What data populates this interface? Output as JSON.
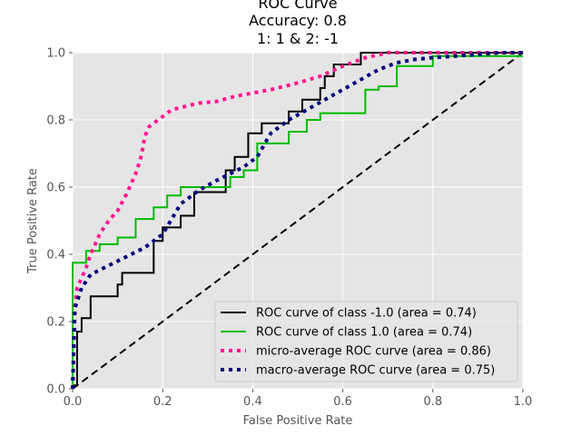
{
  "chart_data": {
    "type": "line",
    "title_lines": [
      "ROC Curve",
      "Accuracy: 0.8",
      "1: 1 & 2: -1"
    ],
    "xlabel": "False Positive Rate",
    "ylabel": "True Positive Rate",
    "xlim": [
      0.0,
      1.0
    ],
    "ylim": [
      0.0,
      1.0
    ],
    "xticks": [
      0.0,
      0.2,
      0.4,
      0.6,
      0.8,
      1.0
    ],
    "yticks": [
      0.0,
      0.2,
      0.4,
      0.6,
      0.8,
      1.0
    ],
    "tick_labels_x": [
      "0.0",
      "0.2",
      "0.4",
      "0.6",
      "0.8",
      "1.0"
    ],
    "tick_labels_y": [
      "0.0",
      "0.2",
      "0.4",
      "0.6",
      "0.8",
      "1.0"
    ],
    "grid": true,
    "background": "#e5e5e5",
    "legend_position": "lower right",
    "series": [
      {
        "name": "ROC curve of class -1.0 (area = 0.74)",
        "color": "#000000",
        "style": "solid",
        "x": [
          0.0,
          0.0,
          0.01,
          0.01,
          0.02,
          0.02,
          0.04,
          0.04,
          0.1,
          0.1,
          0.11,
          0.11,
          0.18,
          0.18,
          0.2,
          0.2,
          0.24,
          0.24,
          0.27,
          0.27,
          0.34,
          0.34,
          0.36,
          0.36,
          0.39,
          0.39,
          0.42,
          0.42,
          0.45,
          0.45,
          0.48,
          0.48,
          0.51,
          0.51,
          0.55,
          0.55,
          0.56,
          0.56,
          0.58,
          0.58,
          0.62,
          0.62,
          0.64,
          0.64,
          0.67,
          0.67,
          1.0
        ],
        "y": [
          0.0,
          0.01,
          0.01,
          0.17,
          0.17,
          0.21,
          0.21,
          0.275,
          0.275,
          0.31,
          0.31,
          0.345,
          0.345,
          0.44,
          0.44,
          0.48,
          0.48,
          0.515,
          0.515,
          0.585,
          0.585,
          0.65,
          0.65,
          0.69,
          0.69,
          0.76,
          0.76,
          0.79,
          0.79,
          0.79,
          0.79,
          0.825,
          0.825,
          0.86,
          0.86,
          0.895,
          0.895,
          0.93,
          0.93,
          0.965,
          0.965,
          0.965,
          0.965,
          1.0,
          1.0,
          1.0,
          1.0
        ]
      },
      {
        "name": "ROC curve of class 1.0 (area = 0.74)",
        "color": "#00bb00",
        "style": "solid",
        "x": [
          0.0,
          0.0,
          0.03,
          0.03,
          0.06,
          0.06,
          0.1,
          0.1,
          0.14,
          0.14,
          0.18,
          0.18,
          0.21,
          0.21,
          0.24,
          0.24,
          0.35,
          0.35,
          0.38,
          0.38,
          0.41,
          0.41,
          0.48,
          0.48,
          0.52,
          0.52,
          0.55,
          0.55,
          0.65,
          0.65,
          0.68,
          0.68,
          0.72,
          0.72,
          0.8,
          0.8,
          1.0
        ],
        "y": [
          0.0,
          0.375,
          0.375,
          0.41,
          0.41,
          0.43,
          0.43,
          0.45,
          0.45,
          0.505,
          0.505,
          0.54,
          0.54,
          0.575,
          0.575,
          0.6,
          0.6,
          0.63,
          0.63,
          0.65,
          0.65,
          0.73,
          0.73,
          0.765,
          0.765,
          0.8,
          0.8,
          0.82,
          0.82,
          0.89,
          0.89,
          0.9,
          0.9,
          0.96,
          0.96,
          0.99,
          0.99
        ]
      },
      {
        "name": "micro-average ROC curve (area = 0.86)",
        "color": "#ff1493",
        "style": "dotted",
        "x": [
          0.0,
          0.005,
          0.01,
          0.02,
          0.03,
          0.04,
          0.05,
          0.06,
          0.08,
          0.1,
          0.12,
          0.14,
          0.15,
          0.155,
          0.16,
          0.17,
          0.18,
          0.2,
          0.22,
          0.25,
          0.28,
          0.32,
          0.36,
          0.4,
          0.44,
          0.5,
          0.55,
          0.6,
          0.65,
          0.7,
          0.8,
          0.9,
          1.0
        ],
        "y": [
          0.0,
          0.24,
          0.3,
          0.33,
          0.36,
          0.4,
          0.43,
          0.46,
          0.5,
          0.53,
          0.58,
          0.64,
          0.68,
          0.71,
          0.75,
          0.78,
          0.79,
          0.81,
          0.83,
          0.84,
          0.85,
          0.855,
          0.87,
          0.88,
          0.89,
          0.91,
          0.93,
          0.96,
          0.985,
          1.0,
          1.0,
          1.0,
          1.0
        ]
      },
      {
        "name": "macro-average ROC curve (area = 0.75)",
        "color": "#000080",
        "style": "dotted",
        "x": [
          0.0,
          0.005,
          0.02,
          0.04,
          0.07,
          0.1,
          0.13,
          0.16,
          0.2,
          0.24,
          0.28,
          0.32,
          0.35,
          0.38,
          0.41,
          0.44,
          0.48,
          0.52,
          0.56,
          0.6,
          0.64,
          0.68,
          0.72,
          0.76,
          0.8,
          0.85,
          0.9,
          0.95,
          1.0
        ],
        "y": [
          0.0,
          0.24,
          0.3,
          0.34,
          0.36,
          0.38,
          0.4,
          0.42,
          0.46,
          0.55,
          0.59,
          0.62,
          0.64,
          0.66,
          0.69,
          0.76,
          0.8,
          0.83,
          0.86,
          0.89,
          0.92,
          0.95,
          0.97,
          0.98,
          0.985,
          0.99,
          0.995,
          1.0,
          1.0
        ]
      }
    ],
    "reference_line": {
      "x": [
        0.0,
        1.0
      ],
      "y": [
        0.0,
        1.0
      ],
      "color": "#000000",
      "style": "dashed"
    }
  }
}
